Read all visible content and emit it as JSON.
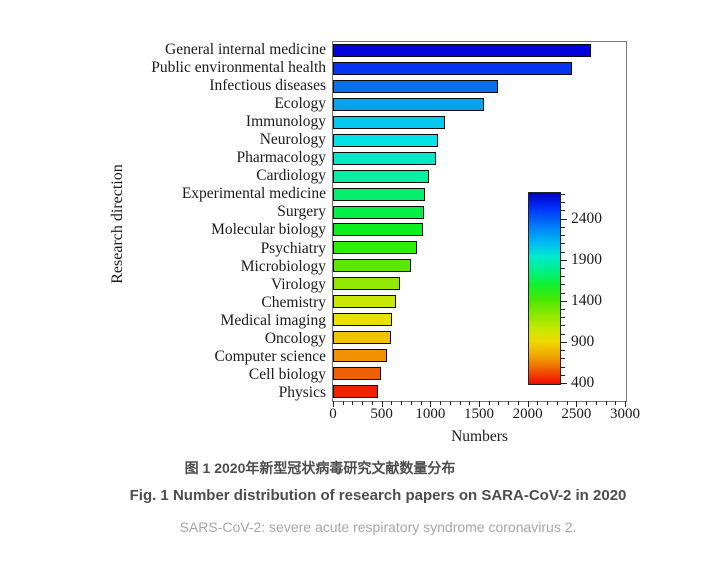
{
  "chart_data": {
    "type": "bar",
    "orientation": "horizontal",
    "xlabel": "Numbers",
    "ylabel": "Research direction",
    "xlim": [
      0,
      3000
    ],
    "x_ticks": [
      0,
      500,
      1000,
      1500,
      2000,
      2500,
      3000
    ],
    "x_minor_tick_step": 100,
    "grid": false,
    "categories": [
      "General internal medicine",
      "Public environmental health",
      "Infectious diseases",
      "Ecology",
      "Immunology",
      "Neurology",
      "Pharmacology",
      "Cardiology",
      "Experimental medicine",
      "Surgery",
      "Molecular biology",
      "Psychiatry",
      "Microbiology",
      "Virology",
      "Chemistry",
      "Medical imaging",
      "Oncology",
      "Computer science",
      "Cell biology",
      "Physics"
    ],
    "values": [
      2650,
      2460,
      1700,
      1550,
      1150,
      1080,
      1060,
      990,
      950,
      940,
      920,
      860,
      800,
      690,
      650,
      610,
      600,
      550,
      490,
      460
    ],
    "bar_colors": [
      "#0202dd",
      "#0535f0",
      "#0b6df0",
      "#0aa2f0",
      "#05c8f0",
      "#02e2e8",
      "#02e8c5",
      "#02f0a0",
      "#02f06e",
      "#02f046",
      "#0af01e",
      "#2cf002",
      "#5ae802",
      "#92e802",
      "#c8e802",
      "#e8e002",
      "#f0c202",
      "#f09202",
      "#f06002",
      "#f02202"
    ],
    "colorbar": {
      "position": "inside-right",
      "value_range_top_to_bottom": [
        2725,
        400
      ],
      "tick_values": [
        2400,
        1900,
        1400,
        900,
        400
      ],
      "minor_tick_step": 100,
      "gradient_stops_top_to_bottom": [
        {
          "pos": 0,
          "color": "#0000c8"
        },
        {
          "pos": 8,
          "color": "#0030f8"
        },
        {
          "pos": 18,
          "color": "#0080f8"
        },
        {
          "pos": 27,
          "color": "#00c0f0"
        },
        {
          "pos": 33,
          "color": "#00e8d0"
        },
        {
          "pos": 40,
          "color": "#00f090"
        },
        {
          "pos": 48,
          "color": "#10f030"
        },
        {
          "pos": 56,
          "color": "#48e800"
        },
        {
          "pos": 64,
          "color": "#90e800"
        },
        {
          "pos": 72,
          "color": "#cce800"
        },
        {
          "pos": 78,
          "color": "#f0d800"
        },
        {
          "pos": 86,
          "color": "#f0a000"
        },
        {
          "pos": 93,
          "color": "#f05800"
        },
        {
          "pos": 100,
          "color": "#f00800"
        }
      ]
    }
  },
  "captions": {
    "caption_zh": "图 1 2020年新型冠状病毒研究文献数量分布",
    "caption_en": "Fig. 1 Number distribution of research papers on SARA-CoV-2 in 2020",
    "note": "SARS-CoV-2: severe acute respiratory syndrome coronavirus 2."
  }
}
